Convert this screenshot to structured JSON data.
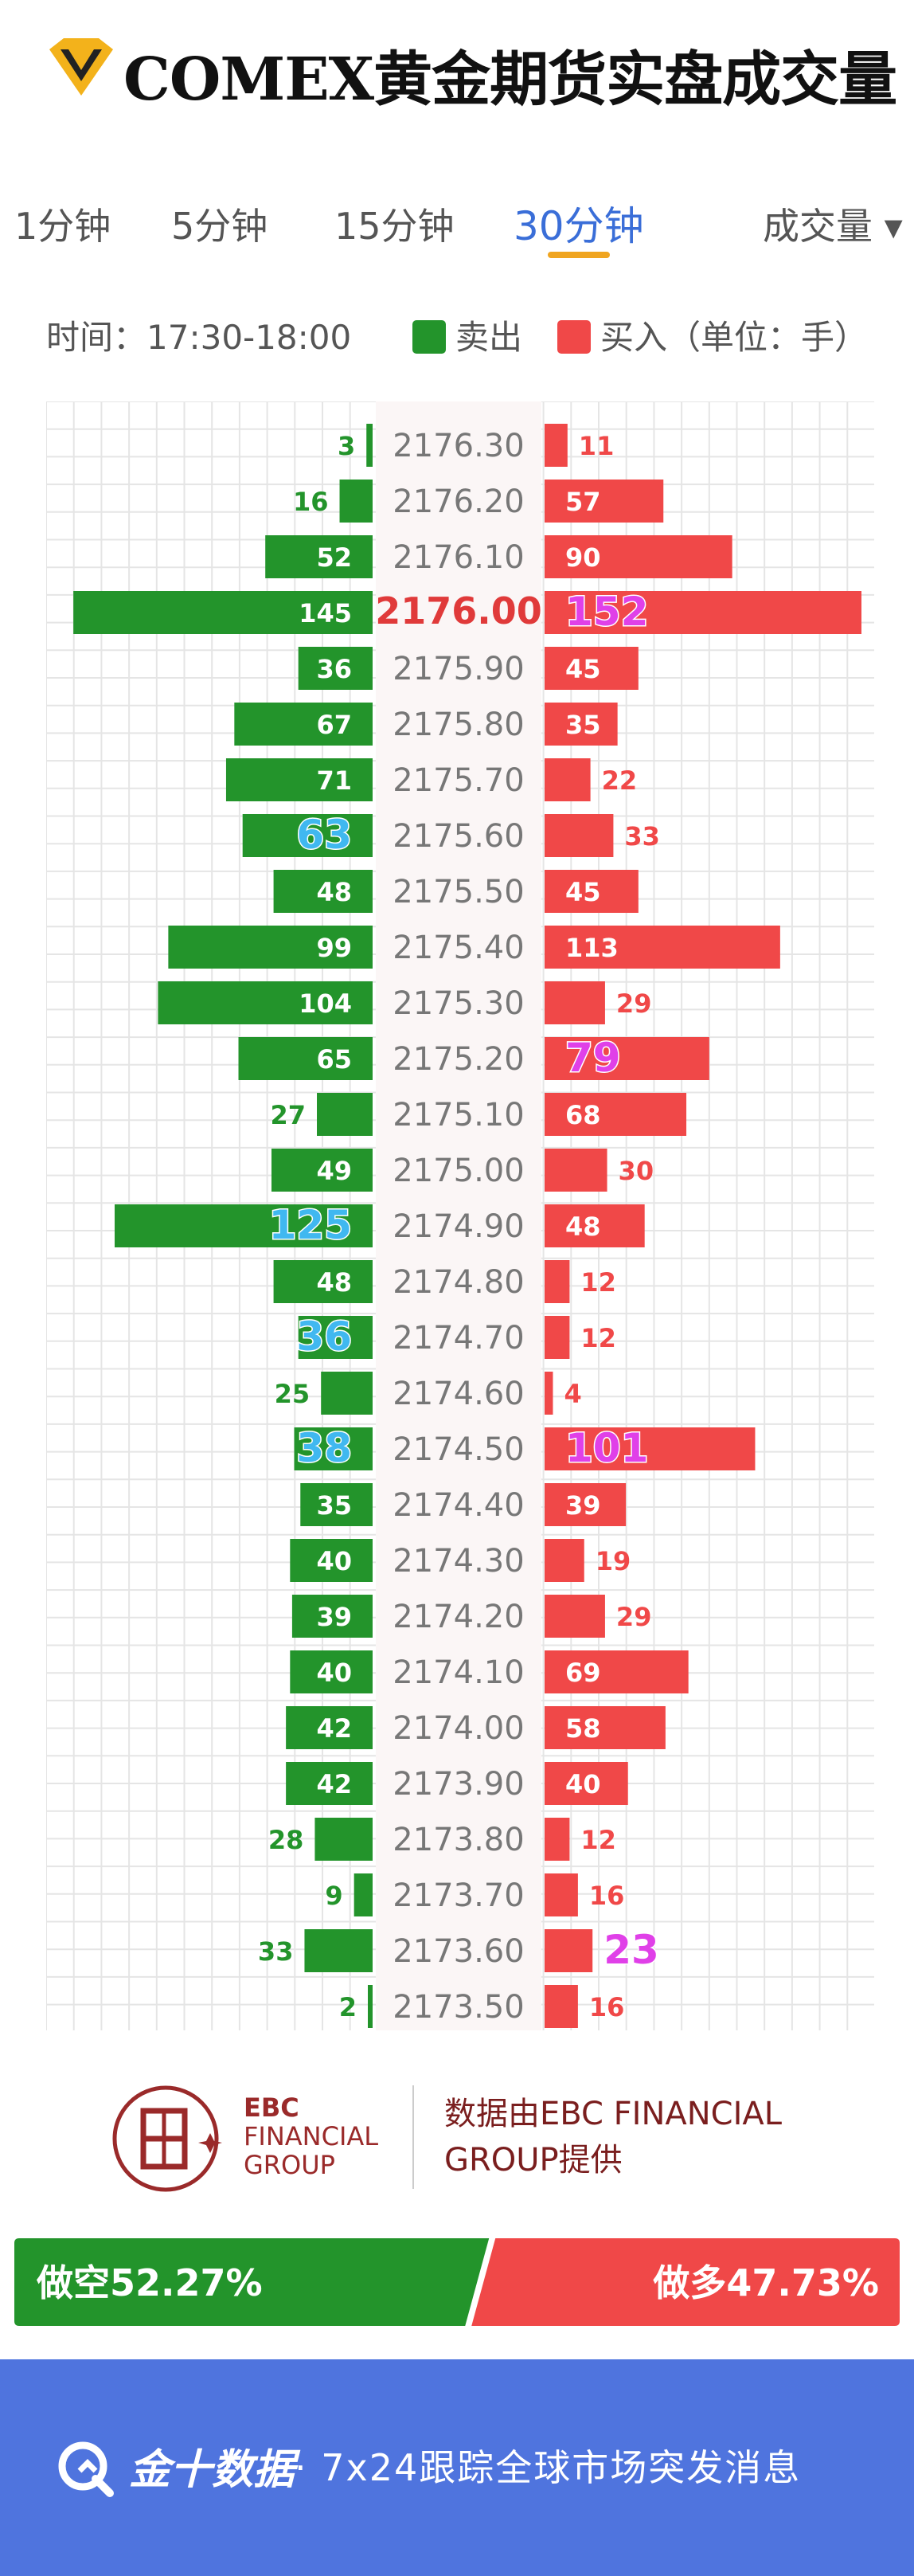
{
  "header": {
    "title": "COMEX黄金期货实盘成交量",
    "tabs": [
      {
        "label": "1分钟",
        "active": false
      },
      {
        "label": "5分钟",
        "active": false
      },
      {
        "label": "15分钟",
        "active": false
      },
      {
        "label": "30分钟",
        "active": true
      }
    ],
    "dropdown_label": "成交量 ▾"
  },
  "info": {
    "time_label": "时间：17:30-18:00",
    "sell_label": "卖出",
    "buy_label": "买入（单位：手）"
  },
  "colors": {
    "sell": "#23942b",
    "buy": "#f04848",
    "price": "#777777",
    "price_highlight": "#e03a3a",
    "highlight_sell": "#40b8f0",
    "highlight_buy": "#e040e8",
    "grid": "#e5e5e5",
    "accent": "#f0a520",
    "band": "#4f74de"
  },
  "chart_data": {
    "type": "bar",
    "orientation": "horizontal-butterfly",
    "categories": [
      "2176.30",
      "2176.20",
      "2176.10",
      "2176.00",
      "2175.90",
      "2175.80",
      "2175.70",
      "2175.60",
      "2175.50",
      "2175.40",
      "2175.30",
      "2175.20",
      "2175.10",
      "2175.00",
      "2174.90",
      "2174.80",
      "2174.70",
      "2174.60",
      "2174.50",
      "2174.40",
      "2174.30",
      "2174.20",
      "2174.10",
      "2174.00",
      "2173.90",
      "2173.80",
      "2173.70",
      "2173.60",
      "2173.50"
    ],
    "series": [
      {
        "name": "卖出",
        "values": [
          3,
          16,
          52,
          145,
          36,
          67,
          71,
          63,
          48,
          99,
          104,
          65,
          27,
          49,
          125,
          48,
          36,
          25,
          38,
          35,
          40,
          39,
          40,
          42,
          42,
          28,
          9,
          33,
          2
        ]
      },
      {
        "name": "买入",
        "values": [
          11,
          57,
          90,
          152,
          45,
          35,
          22,
          33,
          45,
          113,
          29,
          79,
          68,
          30,
          48,
          12,
          12,
          4,
          101,
          39,
          19,
          29,
          69,
          58,
          40,
          12,
          16,
          23,
          16
        ]
      }
    ],
    "highlight_price": "2176.00",
    "highlight_sell_values": [
      "2176.00",
      "2175.60",
      "2174.90",
      "2174.70",
      "2174.50"
    ],
    "highlight_buy_values": [
      "2176.00",
      "2175.20",
      "2174.50",
      "2173.60"
    ],
    "xmax": 152,
    "grid": true
  },
  "footer": {
    "ebc_line1": "EBC",
    "ebc_line2": "FINANCIAL",
    "ebc_line3": "GROUP",
    "source_line1": "数据由EBC FINANCIAL",
    "source_line2": "GROUP提供"
  },
  "ratio": {
    "short_label": "做空52.27%",
    "long_label": "做多47.73%",
    "short_pct": 52.27,
    "long_pct": 47.73
  },
  "bottom": {
    "brand": "金十数据",
    "slogan": "· 7x24跟踪全球市场突发消息"
  }
}
